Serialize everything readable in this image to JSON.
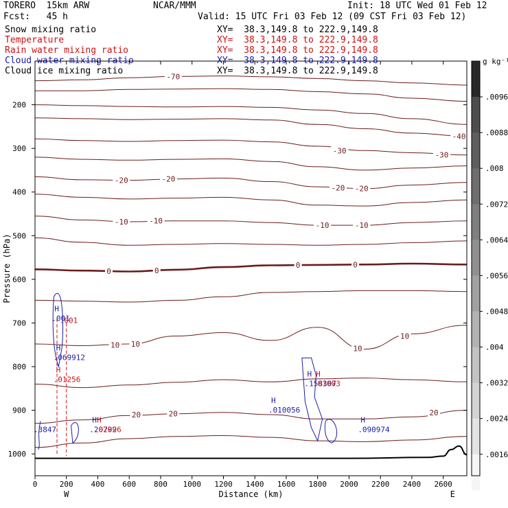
{
  "header": {
    "model": "TORERO  15km ARW",
    "org": "NCAR/MMM",
    "init": "Init: 18 UTC Wed 01 Feb 12",
    "fcst": "Fcst:   45 h",
    "valid": "Valid: 15 UTC Fri 03 Feb 12 (09 CST Fri 03 Feb 12)"
  },
  "fields": [
    {
      "name": "Snow mixing ratio",
      "xy": "XY=  38.3,149.8 to 222.9,149.8",
      "color": "#000000"
    },
    {
      "name": "Temperature",
      "xy": "XY=  38.3,149.8 to 222.9,149.8",
      "color": "#cc1111"
    },
    {
      "name": "Rain water mixing ratio",
      "xy": "XY=  38.3,149.8 to 222.9,149.8",
      "color": "#cc1111"
    },
    {
      "name": "Cloud water mixing ratio",
      "xy": "XY=  38.3,149.8 to 222.9,149.8",
      "color": "#1c1ca8"
    },
    {
      "name": "Cloud ice mixing ratio",
      "xy": "XY=  38.3,149.8 to 222.9,149.8",
      "color": "#000000"
    }
  ],
  "colorbar": {
    "unit": "g kg⁻¹",
    "ticks": [
      ".0096",
      ".0088",
      ".008",
      ".0072",
      ".0064",
      ".0056",
      ".0048",
      ".004",
      ".0032",
      ".0024",
      ".0016"
    ]
  },
  "chart_data": {
    "type": "line",
    "xlabel": "Distance (km)",
    "ylabel": "Pressure (hPa)",
    "xlim": [
      0,
      2750
    ],
    "ylim": [
      1050,
      100
    ],
    "xticks": [
      0,
      200,
      400,
      600,
      800,
      1000,
      1200,
      1400,
      1600,
      1800,
      2000,
      2200,
      2400,
      2600
    ],
    "yticks": [
      200,
      300,
      400,
      500,
      600,
      700,
      800,
      900,
      1000
    ],
    "end_labels": {
      "left": "W",
      "right": "E"
    },
    "temperature_contours": [
      {
        "level": -70,
        "label": "-70",
        "x": [
          0,
          300,
          600,
          900,
          1200,
          1500,
          1800,
          2100,
          2400,
          2750
        ],
        "p": [
          145,
          143,
          138,
          135,
          134,
          136,
          140,
          145,
          150,
          155
        ]
      },
      {
        "level": -60,
        "x": [
          0,
          300,
          600,
          900,
          1200,
          1500,
          1800,
          2100,
          2400,
          2750
        ],
        "p": [
          168,
          168,
          165,
          164,
          163,
          165,
          170,
          175,
          185,
          192
        ]
      },
      {
        "level": -50,
        "x": [
          0,
          300,
          600,
          900,
          1200,
          1500,
          1800,
          2100,
          2400,
          2750
        ],
        "p": [
          200,
          202,
          204,
          205,
          204,
          206,
          212,
          220,
          232,
          245
        ]
      },
      {
        "level": -40,
        "label": "-40",
        "x": [
          0,
          300,
          600,
          900,
          1200,
          1500,
          1800,
          2100,
          2400,
          2750
        ],
        "p": [
          230,
          232,
          234,
          233,
          232,
          235,
          245,
          255,
          265,
          272
        ]
      },
      {
        "level": -30,
        "label": "-30",
        "x": [
          0,
          300,
          600,
          900,
          1200,
          1500,
          1800,
          2100,
          2400,
          2750
        ],
        "p": [
          278,
          282,
          284,
          282,
          281,
          285,
          295,
          305,
          310,
          315
        ]
      },
      {
        "level": -25,
        "x": [
          0,
          300,
          600,
          900,
          1200,
          1500,
          1800,
          2100,
          2400,
          2750
        ],
        "p": [
          320,
          325,
          327,
          325,
          324,
          330,
          342,
          350,
          345,
          340
        ]
      },
      {
        "level": -20,
        "label": "-20",
        "x": [
          0,
          300,
          600,
          900,
          1200,
          1500,
          1800,
          2100,
          2400,
          2750
        ],
        "p": [
          365,
          372,
          373,
          370,
          368,
          376,
          388,
          392,
          384,
          378
        ]
      },
      {
        "level": -15,
        "x": [
          0,
          300,
          600,
          900,
          1200,
          1500,
          1800,
          2100,
          2400,
          2750
        ],
        "p": [
          405,
          412,
          416,
          414,
          412,
          418,
          430,
          432,
          424,
          418
        ]
      },
      {
        "level": -10,
        "label": "-10",
        "x": [
          0,
          300,
          600,
          900,
          1200,
          1500,
          1800,
          2100,
          2400,
          2750
        ],
        "p": [
          455,
          464,
          468,
          466,
          466,
          470,
          476,
          476,
          470,
          466
        ]
      },
      {
        "level": -5,
        "x": [
          0,
          300,
          600,
          900,
          1200,
          1500,
          1800,
          2100,
          2400,
          2750
        ],
        "p": [
          505,
          515,
          522,
          520,
          518,
          520,
          522,
          520,
          516,
          512
        ]
      },
      {
        "level": 0,
        "label": "0",
        "x": [
          0,
          300,
          600,
          900,
          1200,
          1500,
          1800,
          2100,
          2400,
          2750
        ],
        "p": [
          577,
          580,
          582,
          578,
          572,
          568,
          567,
          566,
          564,
          566
        ]
      },
      {
        "level": 5,
        "x": [
          0,
          300,
          600,
          900,
          1200,
          1500,
          1800,
          2100,
          2400,
          2750
        ],
        "p": [
          648,
          650,
          652,
          648,
          640,
          630,
          628,
          626,
          626,
          628
        ]
      },
      {
        "level": 10,
        "label": "10",
        "x": [
          0,
          300,
          600,
          900,
          1200,
          1500,
          1800,
          2100,
          2400,
          2750
        ],
        "p": [
          748,
          752,
          748,
          730,
          722,
          740,
          710,
          760,
          725,
          705
        ]
      },
      {
        "level": 15,
        "x": [
          0,
          300,
          600,
          900,
          1200,
          1500,
          1800,
          2100,
          2400,
          2750
        ],
        "p": [
          840,
          848,
          842,
          836,
          830,
          835,
          828,
          826,
          830,
          835
        ]
      },
      {
        "level": 20,
        "label": "20",
        "x": [
          0,
          300,
          600,
          900,
          1200,
          1500,
          1800,
          2100,
          2400,
          2750
        ],
        "p": [
          930,
          922,
          912,
          908,
          905,
          910,
          920,
          920,
          915,
          900
        ]
      },
      {
        "level": 25,
        "x": [
          0,
          300,
          600,
          900,
          1200,
          1500,
          1800,
          2100,
          2400,
          2750
        ],
        "p": [
          985,
          975,
          965,
          960,
          958,
          962,
          970,
          972,
          968,
          960
        ]
      }
    ],
    "contour_labels": [
      {
        "text": "-70",
        "x": 880,
        "p": 135
      },
      {
        "text": "-40",
        "x": 2700,
        "p": 272
      },
      {
        "text": "-30",
        "x": 1940,
        "p": 305
      },
      {
        "text": "-30",
        "x": 2590,
        "p": 315
      },
      {
        "text": "-20",
        "x": 550,
        "p": 373
      },
      {
        "text": "-20",
        "x": 850,
        "p": 370
      },
      {
        "text": "-20",
        "x": 1930,
        "p": 390
      },
      {
        "text": "-20",
        "x": 2080,
        "p": 392
      },
      {
        "text": "-10",
        "x": 550,
        "p": 468
      },
      {
        "text": "-10",
        "x": 770,
        "p": 466
      },
      {
        "text": "-10",
        "x": 1830,
        "p": 476
      },
      {
        "text": "-10",
        "x": 2080,
        "p": 476
      },
      {
        "text": "0",
        "x": 470,
        "p": 581
      },
      {
        "text": "0",
        "x": 775,
        "p": 580
      },
      {
        "text": "0",
        "x": 1675,
        "p": 567
      },
      {
        "text": "0",
        "x": 2040,
        "p": 566
      },
      {
        "text": "10",
        "x": 510,
        "p": 750
      },
      {
        "text": "10",
        "x": 640,
        "p": 748
      },
      {
        "text": "10",
        "x": 2055,
        "p": 758
      },
      {
        "text": "10",
        "x": 2355,
        "p": 730
      },
      {
        "text": "20",
        "x": 645,
        "p": 910
      },
      {
        "text": "20",
        "x": 880,
        "p": 908
      },
      {
        "text": "20",
        "x": 2540,
        "p": 905
      }
    ],
    "extrema_labels": [
      {
        "mark": "H",
        "value": ".001",
        "x": 150,
        "p": 695,
        "color": "#1c1ca8"
      },
      {
        "mark": "",
        "value": ".001",
        "x": 200,
        "p": 700,
        "color": "#cc1111"
      },
      {
        "mark": "H",
        "value": ".069912",
        "x": 160,
        "p": 785,
        "color": "#1c1ca8"
      },
      {
        "mark": "H",
        "value": ".01256",
        "x": 160,
        "p": 835,
        "color": "#cc1111"
      },
      {
        "mark": "",
        "value": ".3847",
        "x": 35,
        "p": 950,
        "color": "#1c1ca8"
      },
      {
        "mark": "H",
        "value": ".20792",
        "x": 390,
        "p": 950,
        "color": "#1c1ca8"
      },
      {
        "mark": "H",
        "value": ".02096",
        "x": 420,
        "p": 950,
        "color": "#cc1111"
      },
      {
        "mark": "H",
        "value": ".010056",
        "x": 1530,
        "p": 905,
        "color": "#1c1ca8"
      },
      {
        "mark": "H",
        "value": ".158307",
        "x": 1760,
        "p": 845,
        "color": "#1c1ca8"
      },
      {
        "mark": "H",
        "value": ".01003",
        "x": 1815,
        "p": 845,
        "color": "#cc1111"
      },
      {
        "mark": "H",
        "value": ".090974",
        "x": 2100,
        "p": 950,
        "color": "#1c1ca8"
      }
    ],
    "surface": {
      "x": [
        0,
        500,
        1000,
        1500,
        2000,
        2500,
        2600,
        2650,
        2700,
        2750
      ],
      "p": [
        1010,
        1010,
        1010,
        1010,
        1010,
        1008,
        1005,
        990,
        982,
        1002
      ]
    }
  }
}
